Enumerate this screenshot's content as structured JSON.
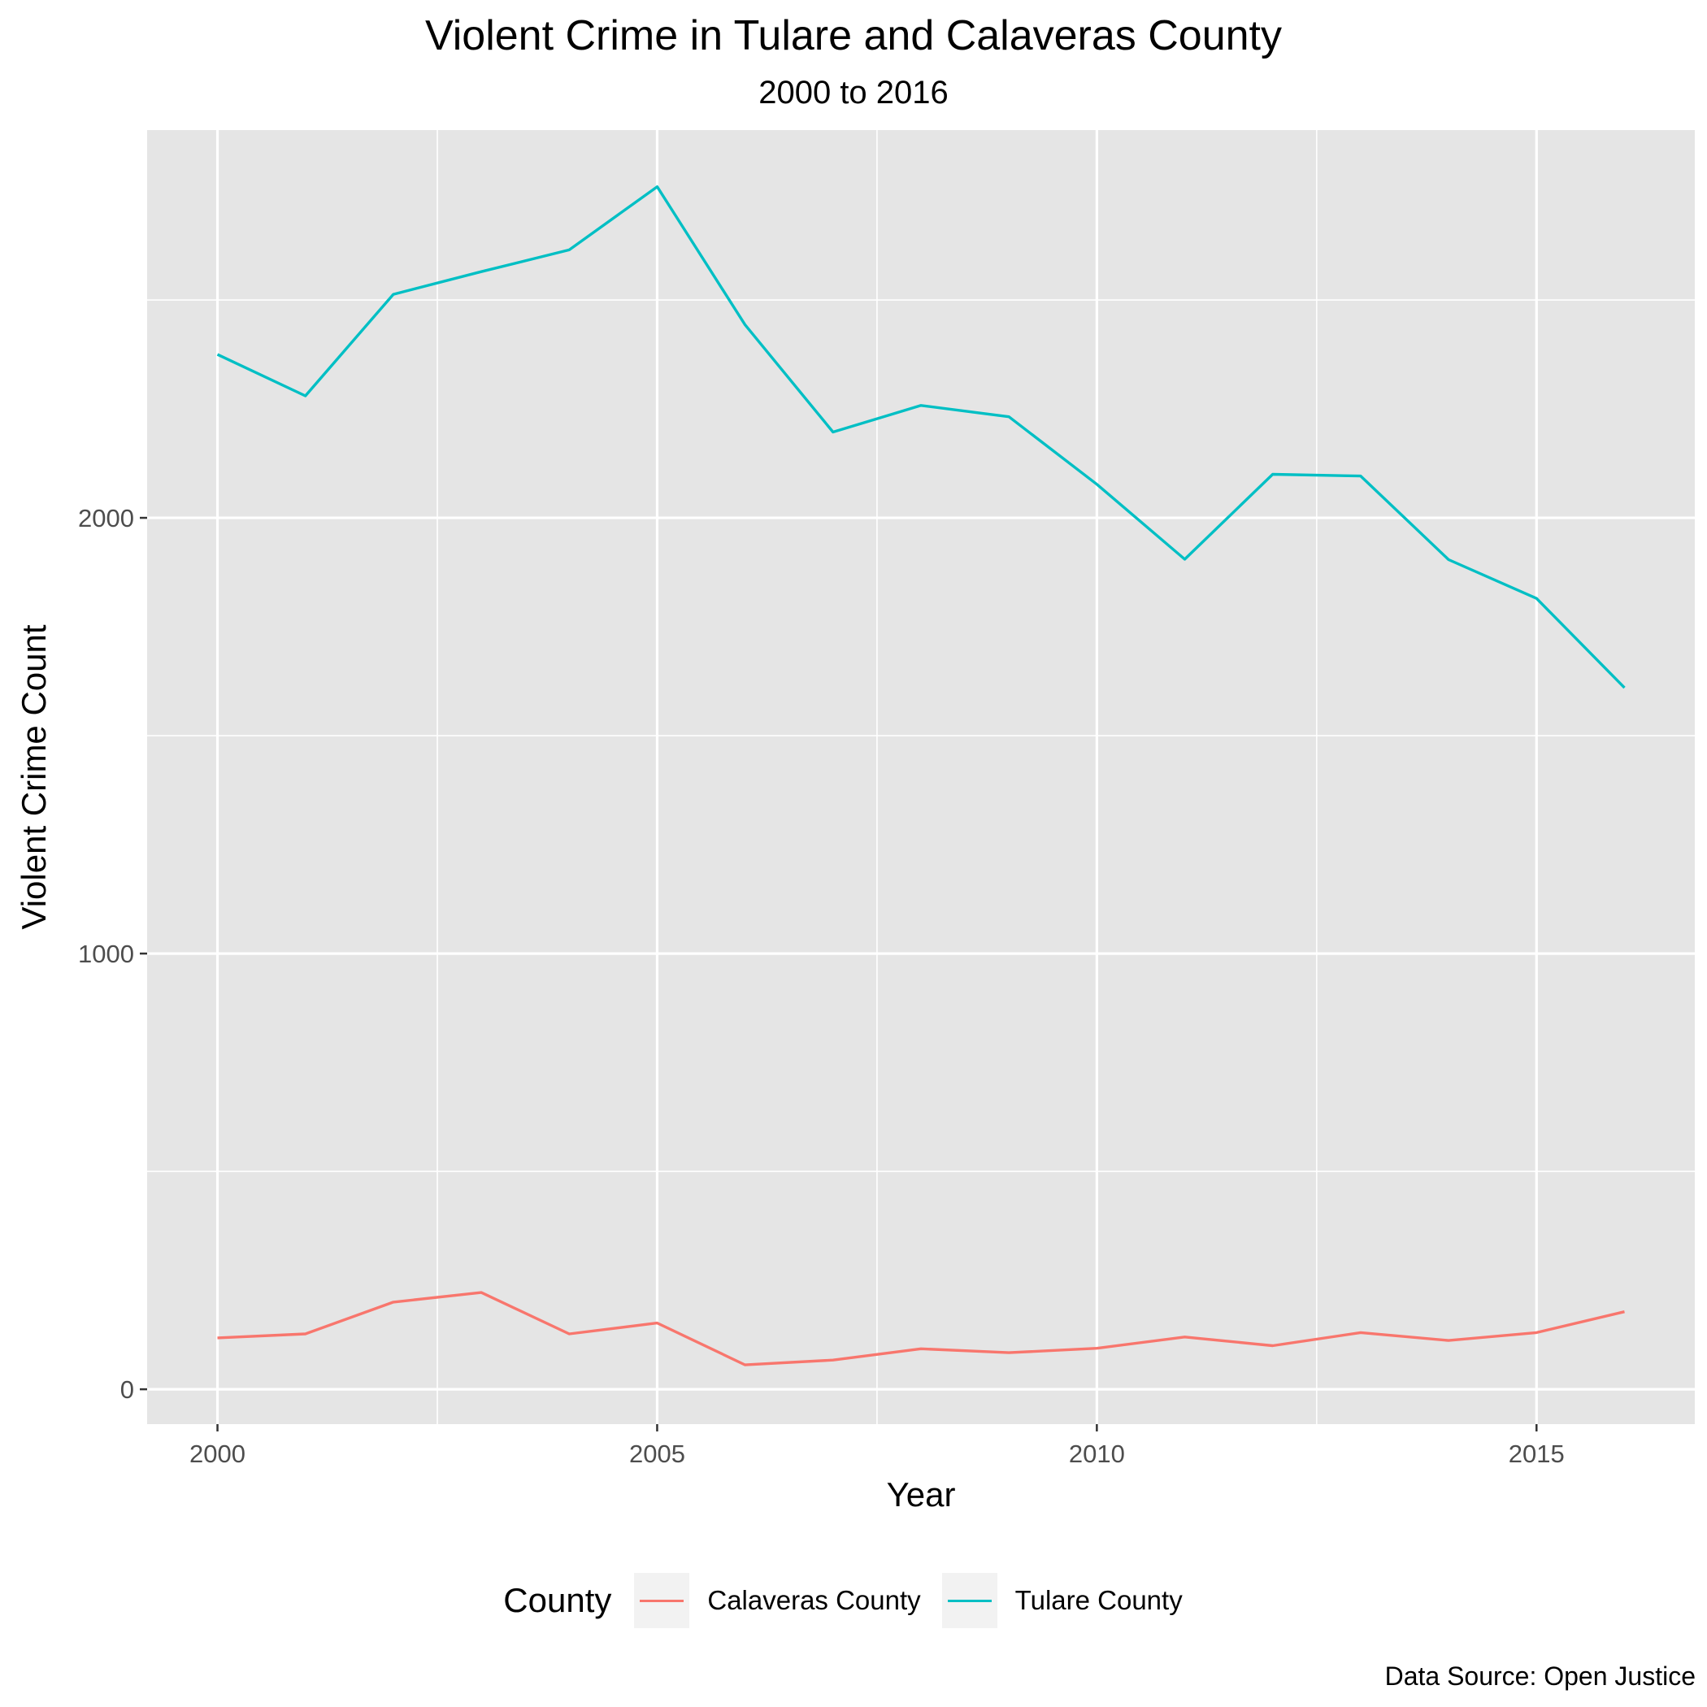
{
  "chart_data": {
    "type": "line",
    "title": "Violent Crime in Tulare and Calaveras County",
    "subtitle": "2000 to 2016",
    "xlabel": "Year",
    "ylabel": "Violent Crime Count",
    "caption": "Data Source: Open Justice",
    "legend_title": "County",
    "legend_position": "bottom",
    "xlim": [
      1999.2,
      2016.8
    ],
    "ylim": [
      -80,
      2890
    ],
    "x_ticks": [
      2000,
      2005,
      2010,
      2015
    ],
    "y_ticks": [
      0,
      1000,
      2000
    ],
    "grid": true,
    "x": [
      2000,
      2001,
      2002,
      2003,
      2004,
      2005,
      2006,
      2007,
      2008,
      2009,
      2010,
      2011,
      2012,
      2013,
      2014,
      2015,
      2016
    ],
    "series": [
      {
        "name": "Calaveras County",
        "color": "#f8766d",
        "values": [
          118,
          127,
          200,
          222,
          127,
          152,
          56,
          67,
          93,
          84,
          94,
          120,
          100,
          130,
          112,
          130,
          178
        ]
      },
      {
        "name": "Tulare County",
        "color": "#00bfc4",
        "values": [
          2375,
          2280,
          2513,
          2565,
          2615,
          2760,
          2443,
          2197,
          2258,
          2232,
          2077,
          1905,
          2100,
          2096,
          1904,
          1815,
          1610
        ]
      }
    ]
  }
}
